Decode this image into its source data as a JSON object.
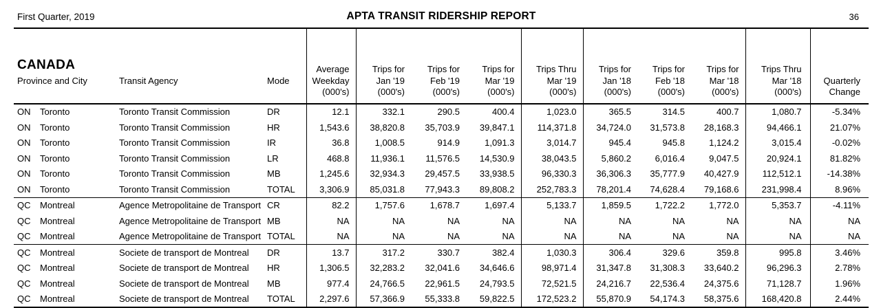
{
  "page_header": {
    "period": "First Quarter, 2019",
    "title": "APTA TRANSIT RIDERSHIP REPORT",
    "page_number": "36"
  },
  "table": {
    "region_title": "CANADA",
    "columns": [
      {
        "id": "province-city",
        "lines": [
          "Province and City"
        ]
      },
      {
        "id": "agency",
        "lines": [
          "Transit Agency"
        ]
      },
      {
        "id": "mode",
        "lines": [
          "Mode"
        ]
      },
      {
        "id": "avg-weekday",
        "lines": [
          "Average",
          "Weekday",
          "(000's)"
        ]
      },
      {
        "id": "jan19",
        "lines": [
          "Trips for",
          "Jan '19",
          "(000's)"
        ]
      },
      {
        "id": "feb19",
        "lines": [
          "Trips for",
          "Feb '19",
          "(000's)"
        ]
      },
      {
        "id": "mar19",
        "lines": [
          "Trips for",
          "Mar '19",
          "(000's)"
        ]
      },
      {
        "id": "thru-mar19",
        "lines": [
          "Trips Thru",
          "Mar '19",
          "(000's)"
        ]
      },
      {
        "id": "jan18",
        "lines": [
          "Trips for",
          "Jan '18",
          "(000's)"
        ]
      },
      {
        "id": "feb18",
        "lines": [
          "Trips for",
          "Feb '18",
          "(000's)"
        ]
      },
      {
        "id": "mar18",
        "lines": [
          "Trips for",
          "Mar '18",
          "(000's)"
        ]
      },
      {
        "id": "thru-mar18",
        "lines": [
          "Trips Thru",
          "Mar '18",
          "(000's)"
        ]
      },
      {
        "id": "quarterly-change",
        "lines": [
          "Quarterly",
          "Change"
        ]
      }
    ],
    "sections": [
      {
        "rows": [
          {
            "province": "ON",
            "city": "Toronto",
            "agency": "Toronto Transit Commission",
            "mode": "DR",
            "values": [
              "12.1",
              "332.1",
              "290.5",
              "400.4",
              "1,023.0",
              "365.5",
              "314.5",
              "400.7",
              "1,080.7",
              "-5.34%"
            ]
          },
          {
            "province": "ON",
            "city": "Toronto",
            "agency": "Toronto Transit Commission",
            "mode": "HR",
            "values": [
              "1,543.6",
              "38,820.8",
              "35,703.9",
              "39,847.1",
              "114,371.8",
              "34,724.0",
              "31,573.8",
              "28,168.3",
              "94,466.1",
              "21.07%"
            ]
          },
          {
            "province": "ON",
            "city": "Toronto",
            "agency": "Toronto Transit Commission",
            "mode": "IR",
            "values": [
              "36.8",
              "1,008.5",
              "914.9",
              "1,091.3",
              "3,014.7",
              "945.4",
              "945.8",
              "1,124.2",
              "3,015.4",
              "-0.02%"
            ]
          },
          {
            "province": "ON",
            "city": "Toronto",
            "agency": "Toronto Transit Commission",
            "mode": "LR",
            "values": [
              "468.8",
              "11,936.1",
              "11,576.5",
              "14,530.9",
              "38,043.5",
              "5,860.2",
              "6,016.4",
              "9,047.5",
              "20,924.1",
              "81.82%"
            ]
          },
          {
            "province": "ON",
            "city": "Toronto",
            "agency": "Toronto Transit Commission",
            "mode": "MB",
            "values": [
              "1,245.6",
              "32,934.3",
              "29,457.5",
              "33,938.5",
              "96,330.3",
              "36,306.3",
              "35,777.9",
              "40,427.9",
              "112,512.1",
              "-14.38%"
            ]
          },
          {
            "province": "ON",
            "city": "Toronto",
            "agency": "Toronto Transit Commission",
            "mode": "TOTAL",
            "values": [
              "3,306.9",
              "85,031.8",
              "77,943.3",
              "89,808.2",
              "252,783.3",
              "78,201.4",
              "74,628.4",
              "79,168.6",
              "231,998.4",
              "8.96%"
            ]
          }
        ]
      },
      {
        "rows": [
          {
            "province": "QC",
            "city": "Montreal",
            "agency": "Agence Metropolitaine de Transport",
            "mode": "CR",
            "values": [
              "82.2",
              "1,757.6",
              "1,678.7",
              "1,697.4",
              "5,133.7",
              "1,859.5",
              "1,722.2",
              "1,772.0",
              "5,353.7",
              "-4.11%"
            ]
          },
          {
            "province": "QC",
            "city": "Montreal",
            "agency": "Agence Metropolitaine de Transport",
            "mode": "MB",
            "values": [
              "NA",
              "NA",
              "NA",
              "NA",
              "NA",
              "NA",
              "NA",
              "NA",
              "NA",
              "NA"
            ]
          },
          {
            "province": "QC",
            "city": "Montreal",
            "agency": "Agence Metropolitaine de Transport",
            "mode": "TOTAL",
            "values": [
              "NA",
              "NA",
              "NA",
              "NA",
              "NA",
              "NA",
              "NA",
              "NA",
              "NA",
              "NA"
            ]
          }
        ]
      },
      {
        "rows": [
          {
            "province": "QC",
            "city": "Montreal",
            "agency": "Societe de transport de Montreal",
            "mode": "DR",
            "values": [
              "13.7",
              "317.2",
              "330.7",
              "382.4",
              "1,030.3",
              "306.4",
              "329.6",
              "359.8",
              "995.8",
              "3.46%"
            ]
          },
          {
            "province": "QC",
            "city": "Montreal",
            "agency": "Societe de transport de Montreal",
            "mode": "HR",
            "values": [
              "1,306.5",
              "32,283.2",
              "32,041.6",
              "34,646.6",
              "98,971.4",
              "31,347.8",
              "31,308.3",
              "33,640.2",
              "96,296.3",
              "2.78%"
            ]
          },
          {
            "province": "QC",
            "city": "Montreal",
            "agency": "Societe de transport de Montreal",
            "mode": "MB",
            "values": [
              "977.4",
              "24,766.5",
              "22,961.5",
              "24,793.5",
              "72,521.5",
              "24,216.7",
              "22,536.4",
              "24,375.6",
              "71,128.7",
              "1.96%"
            ]
          },
          {
            "province": "QC",
            "city": "Montreal",
            "agency": "Societe de transport de Montreal",
            "mode": "TOTAL",
            "values": [
              "2,297.6",
              "57,366.9",
              "55,333.8",
              "59,822.5",
              "172,523.2",
              "55,870.9",
              "54,174.3",
              "58,375.6",
              "168,420.8",
              "2.44%"
            ]
          }
        ]
      }
    ]
  }
}
